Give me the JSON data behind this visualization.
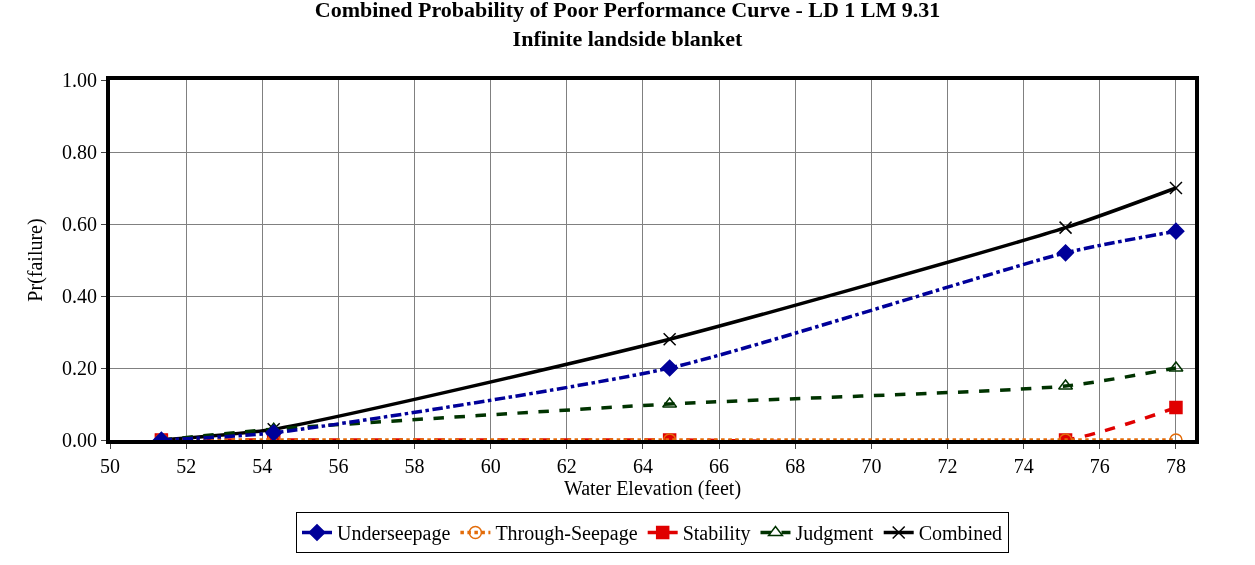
{
  "chart_data": {
    "type": "line",
    "title": "Combined Probability of Poor Performance Curve - LD 1 LM 9.31",
    "subtitle": "Infinite landside blanket",
    "xlabel": "Water Elevation (feet)",
    "ylabel": "Pr(failure)",
    "x": [
      51.35,
      54.3,
      64.7,
      75.1,
      78.0
    ],
    "series": [
      {
        "name": "Underseepage",
        "color": "#000099",
        "values": [
          0,
          0.02,
          0.2,
          0.52,
          0.58
        ],
        "marker": "diamond",
        "line_style": "dashdot"
      },
      {
        "name": "Through-Seepage",
        "color": "#e36c0a",
        "values": [
          0,
          0,
          0,
          0,
          0
        ],
        "marker": "circle",
        "line_style": "dotted"
      },
      {
        "name": "Stability",
        "color": "#e00000",
        "values": [
          0,
          0,
          0,
          0,
          0.09
        ],
        "marker": "square",
        "line_style": "dashed"
      },
      {
        "name": "Judgment",
        "color": "#003300",
        "values": [
          0,
          0.03,
          0.1,
          0.15,
          0.2
        ],
        "marker": "triangle",
        "line_style": "dashed"
      },
      {
        "name": "Combined",
        "color": "#000000",
        "values": [
          0,
          0.03,
          0.28,
          0.59,
          0.7
        ],
        "marker": "cross",
        "line_style": "solid"
      }
    ],
    "xlim": [
      50,
      78.5
    ],
    "xticks": [
      50,
      52,
      54,
      56,
      58,
      60,
      62,
      64,
      66,
      68,
      70,
      72,
      74,
      76,
      78
    ],
    "ylim": [
      0,
      1
    ],
    "yticks": [
      {
        "value": 0,
        "label": "0.00"
      },
      {
        "value": 0.2,
        "label": "0.20"
      },
      {
        "value": 0.4,
        "label": "0.40"
      },
      {
        "value": 0.6,
        "label": "0.60"
      },
      {
        "value": 0.8,
        "label": "0.80"
      },
      {
        "value": 1,
        "label": "1.00"
      }
    ],
    "grid": true,
    "legend": "bottom"
  }
}
